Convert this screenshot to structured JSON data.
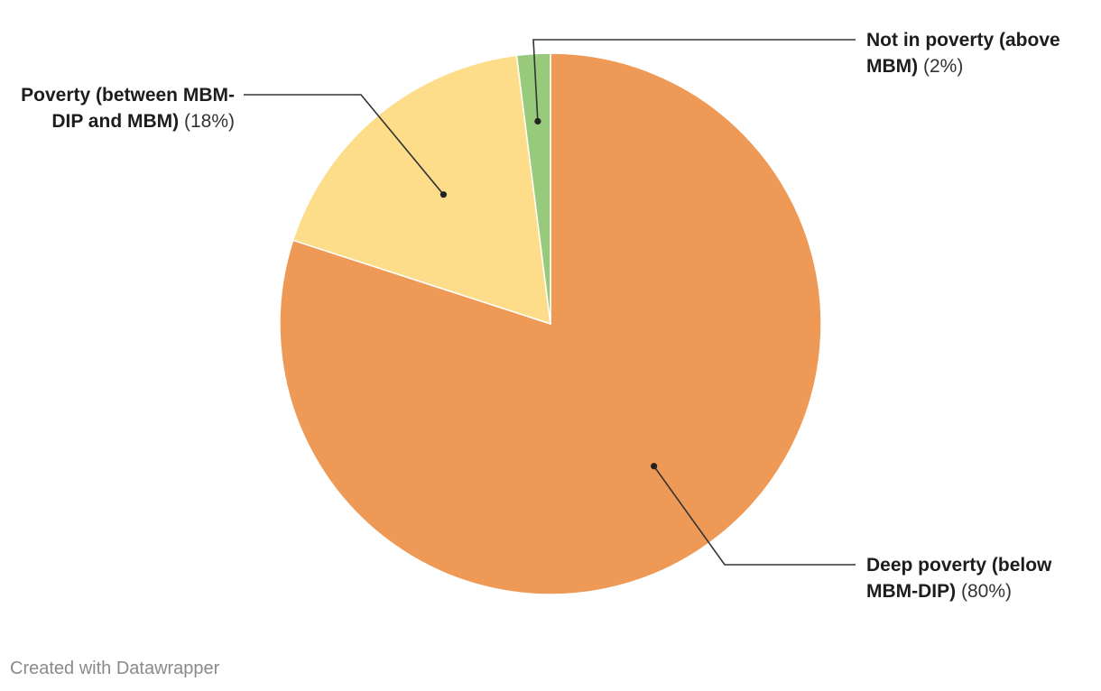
{
  "chart_data": {
    "type": "pie",
    "slices": [
      {
        "label": "Deep poverty (below MBM-DIP)",
        "value": 80,
        "value_label": "(80%)",
        "color": "#ee9a56"
      },
      {
        "label": "Poverty (between MBM-DIP and MBM)",
        "value": 18,
        "value_label": "(18%)",
        "color": "#fddd89"
      },
      {
        "label": "Not in poverty (above MBM)",
        "value": 2,
        "value_label": "(2%)",
        "color": "#98ca7c"
      }
    ],
    "start": "12 o'clock",
    "direction": "clockwise"
  },
  "footer": {
    "credit": "Created with Datawrapper"
  }
}
